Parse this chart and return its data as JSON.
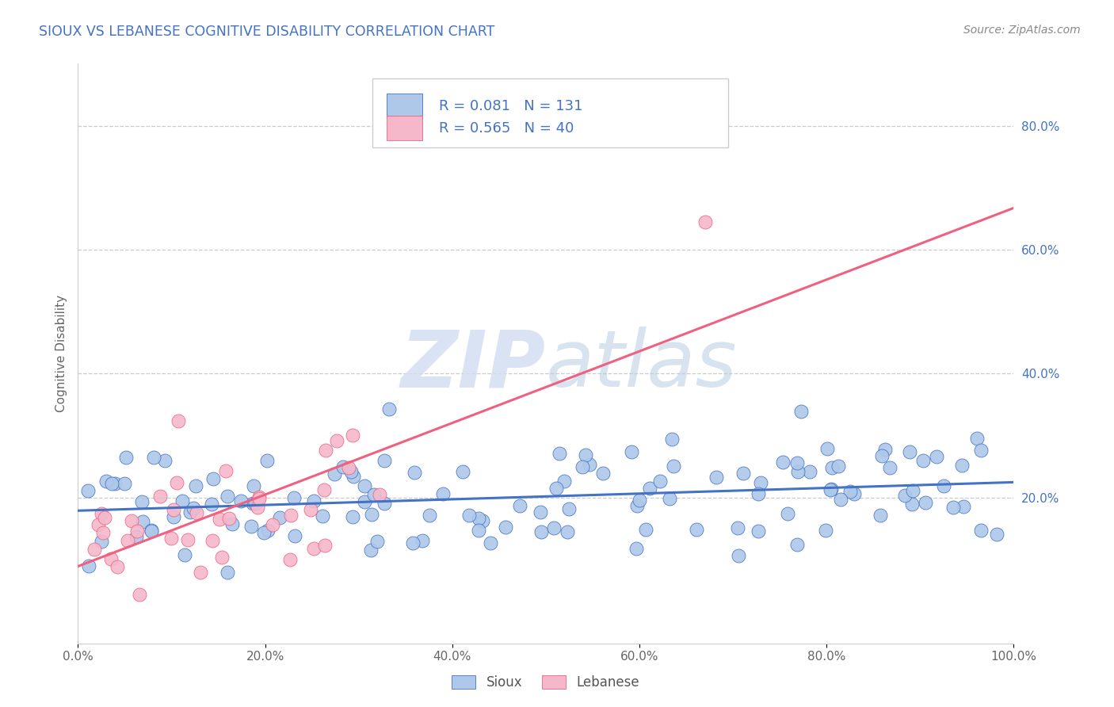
{
  "title": "SIOUX VS LEBANESE COGNITIVE DISABILITY CORRELATION CHART",
  "source": "Source: ZipAtlas.com",
  "ylabel": "Cognitive Disability",
  "xlim": [
    0.0,
    1.0
  ],
  "ylim": [
    -0.035,
    0.9
  ],
  "xtick_labels": [
    "0.0%",
    "20.0%",
    "40.0%",
    "60.0%",
    "80.0%",
    "100.0%"
  ],
  "xtick_vals": [
    0.0,
    0.2,
    0.4,
    0.6,
    0.8,
    1.0
  ],
  "ytick_labels": [
    "20.0%",
    "40.0%",
    "60.0%",
    "80.0%"
  ],
  "ytick_vals": [
    0.2,
    0.4,
    0.6,
    0.8
  ],
  "sioux_R": 0.081,
  "sioux_N": 131,
  "lebanese_R": 0.565,
  "lebanese_N": 40,
  "sioux_color": "#adc8e8",
  "lebanese_color": "#f5b8cb",
  "sioux_line_color": "#4472c4",
  "lebanese_line_color": "#f06080",
  "legend_text_color": "#4472c4",
  "title_color": "#4472c4",
  "watermark_color": "#d0ddf0",
  "background_color": "#ffffff",
  "grid_color": "#cccccc"
}
